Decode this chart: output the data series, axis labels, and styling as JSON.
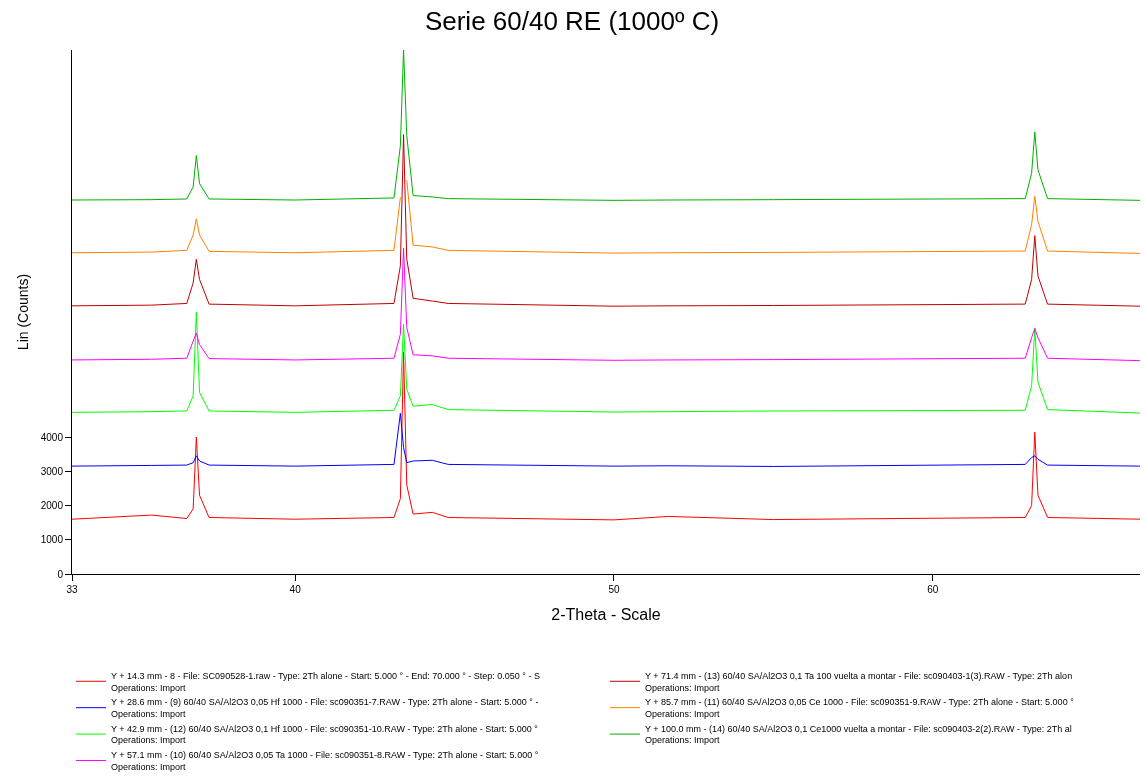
{
  "chart_data": {
    "type": "line",
    "title": "Serie 60/40 RE (1000º C)",
    "xlabel": "2-Theta - Scale",
    "ylabel": "Lin (Counts)",
    "x": [
      33,
      35.5,
      36.6,
      36.8,
      36.9,
      37.0,
      37.3,
      40,
      43.1,
      43.3,
      43.4,
      43.5,
      43.7,
      44.3,
      44.8,
      50,
      51.7,
      55,
      62.9,
      63.1,
      63.2,
      63.3,
      63.6,
      66.5
    ],
    "xlim": [
      33,
      66.5
    ],
    "xticks": [
      33,
      40,
      50,
      60
    ],
    "ylim": [
      0,
      15300
    ],
    "yticks": [
      0,
      1000,
      2000,
      3000,
      4000
    ],
    "grid": false,
    "legend": "bottom",
    "marker": "none",
    "line_style": "solid",
    "series": [
      {
        "name": "Y + 14.3 mm - 8 - File: SC090528-1.raw - Type: 2Th alone - Start: 5.000 ° - End: 70.000 ° - Step: 0.050 ° - S\nOperations: Import",
        "color": "#ff0000",
        "values": [
          1600,
          1720,
          1620,
          1900,
          4000,
          2300,
          1650,
          1600,
          1650,
          2200,
          6480,
          2600,
          1750,
          1800,
          1650,
          1580,
          1680,
          1590,
          1650,
          2000,
          4140,
          2300,
          1650,
          1600
        ]
      },
      {
        "name": "Y + 28.6 mm - (9) 60/40 SA/Al2O3 0,05 Hf 1000 - File: sc090351-7.RAW - Type: 2Th alone - Start: 5.000 ° -\nOperations: Import",
        "color": "#0000ff",
        "values": [
          3150,
          3170,
          3180,
          3250,
          3450,
          3300,
          3180,
          3150,
          3200,
          4690,
          3700,
          3250,
          3300,
          3320,
          3200,
          3150,
          3160,
          3140,
          3200,
          3400,
          3450,
          3350,
          3180,
          3150
        ]
      },
      {
        "name": "Y + 42.9 mm - (12) 60/40 SA/Al2O3 0,1 Hf 1000 - File: sc090351-10.RAW - Type: 2Th alone - Start: 5.000 °\nOperations: Import",
        "color": "#00ff00",
        "values": [
          4720,
          4740,
          4760,
          5200,
          7640,
          5300,
          4760,
          4720,
          4780,
          5200,
          7300,
          5400,
          4900,
          4950,
          4800,
          4730,
          4740,
          4760,
          4780,
          5500,
          7170,
          5600,
          4800,
          4700
        ]
      },
      {
        "name": "Y + 57.1 mm - (10) 60/40 SA/Al2O3 0,05 Ta 1000 - File: sc090351-8.RAW - Type: 2Th alone - Start: 5.000 °\nOperations: Import",
        "color": "#ff00ff",
        "values": [
          6250,
          6270,
          6300,
          6800,
          7030,
          6700,
          6290,
          6250,
          6300,
          7000,
          9520,
          7200,
          6400,
          6370,
          6300,
          6240,
          6250,
          6260,
          6300,
          6900,
          7170,
          6900,
          6300,
          6230
        ]
      },
      {
        "name": "Y + 71.4 mm - (13) 60/40 SA/Al2O3 0,1 Ta 100 vuelta a montar - File: sc090403-1(3).RAW - Type: 2Th alon\nOperations: Import",
        "color": "#c00000",
        "values": [
          7830,
          7850,
          7900,
          8500,
          9190,
          8600,
          7880,
          7830,
          7900,
          9000,
          12830,
          9200,
          8050,
          7970,
          7900,
          7820,
          7830,
          7840,
          7880,
          8600,
          9880,
          8700,
          7880,
          7820
        ]
      },
      {
        "name": "Y + 85.7 mm - (11) 60/40 SA/Al2O3 0,05 Ce 1000 - File: sc090351-9.RAW - Type: 2Th alone - Start: 5.000 °\nOperations: Import",
        "color": "#ff8000",
        "values": [
          9380,
          9400,
          9450,
          9900,
          10370,
          9900,
          9420,
          9380,
          9450,
          11000,
          null,
          11500,
          9600,
          9550,
          9450,
          9370,
          9380,
          9390,
          9430,
          10200,
          11030,
          10300,
          9430,
          9360
        ]
      },
      {
        "name": "Y + 100.0 mm - (14) 60/40 SA/Al2O3 0,1 Ce1000 vuelta a montar - File: sc090403-2(2).RAW - Type: 2Th al\nOperations: Import",
        "color": "#00b000",
        "values": [
          10920,
          10930,
          10950,
          11300,
          12220,
          11400,
          10950,
          10920,
          10980,
          12500,
          15300,
          12800,
          11050,
          11010,
          10960,
          10910,
          10920,
          10930,
          10960,
          11700,
          12910,
          11800,
          10960,
          10910
        ]
      }
    ]
  }
}
